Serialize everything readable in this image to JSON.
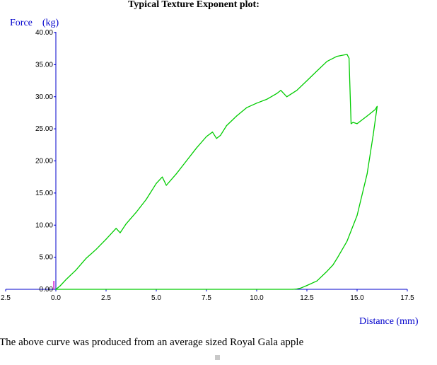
{
  "chart_data": {
    "type": "line",
    "title": "Typical Texture Exponent plot:",
    "xlabel": "Distance (mm)",
    "ylabel": "Force    (kg)",
    "xlim": [
      -2.5,
      17.5
    ],
    "ylim": [
      0,
      40
    ],
    "x_ticks": [
      "2.5",
      "0.0",
      "2.5",
      "5.0",
      "7.5",
      "10.0",
      "12.5",
      "15.0",
      "17.5"
    ],
    "x_tick_values": [
      -2.5,
      0,
      2.5,
      5,
      7.5,
      10,
      12.5,
      15,
      17.5
    ],
    "y_ticks": [
      "0.00",
      "5.00",
      "10.00",
      "15.00",
      "20.00",
      "25.00",
      "30.00",
      "35.00",
      "40.00"
    ],
    "y_tick_values": [
      0,
      5,
      10,
      15,
      20,
      25,
      30,
      35,
      40
    ],
    "grid": false,
    "legend": "none",
    "series": [
      {
        "color": "#00cc00",
        "x": [
          0,
          0.2,
          0.5,
          1.0,
          1.5,
          2.0,
          2.5,
          3.0,
          3.2,
          3.5,
          4.0,
          4.5,
          5.0,
          5.3,
          5.5,
          6.0,
          6.5,
          7.0,
          7.5,
          7.8,
          8.0,
          8.2,
          8.5,
          9.0,
          9.5,
          10.0,
          10.5,
          11.0,
          11.2,
          11.5,
          12.0,
          12.5,
          13.0,
          13.5,
          14.0,
          14.5,
          14.6,
          14.7,
          14.8,
          15.0,
          15.5,
          15.9,
          16.0
        ],
        "y": [
          0,
          0.5,
          1.5,
          3.0,
          4.8,
          6.2,
          7.8,
          9.5,
          8.8,
          10.2,
          12.0,
          14.0,
          16.5,
          17.5,
          16.2,
          18.0,
          20.0,
          22.0,
          23.8,
          24.5,
          23.5,
          24.0,
          25.5,
          27.0,
          28.3,
          29.0,
          29.6,
          30.5,
          31.0,
          30.0,
          31.0,
          32.5,
          34.0,
          35.5,
          36.3,
          36.6,
          36.0,
          25.8,
          26.0,
          25.8,
          27.0,
          28.0,
          28.5
        ]
      },
      {
        "color": "#00cc00",
        "x": [
          16.0,
          15.8,
          15.5,
          15.0,
          14.5,
          14.0,
          13.8,
          13.5,
          13.0,
          12.5,
          12.2,
          12.0,
          11.8,
          0
        ],
        "y": [
          28.5,
          24.0,
          18.0,
          11.5,
          7.5,
          4.8,
          3.8,
          2.8,
          1.3,
          0.6,
          0.2,
          0.05,
          0,
          0
        ]
      }
    ],
    "annotations": [
      {
        "x": -0.1,
        "y": 0,
        "text": "",
        "color": "#cc00cc"
      }
    ],
    "caption": "The above curve was produced from an average sized Royal Gala apple"
  }
}
